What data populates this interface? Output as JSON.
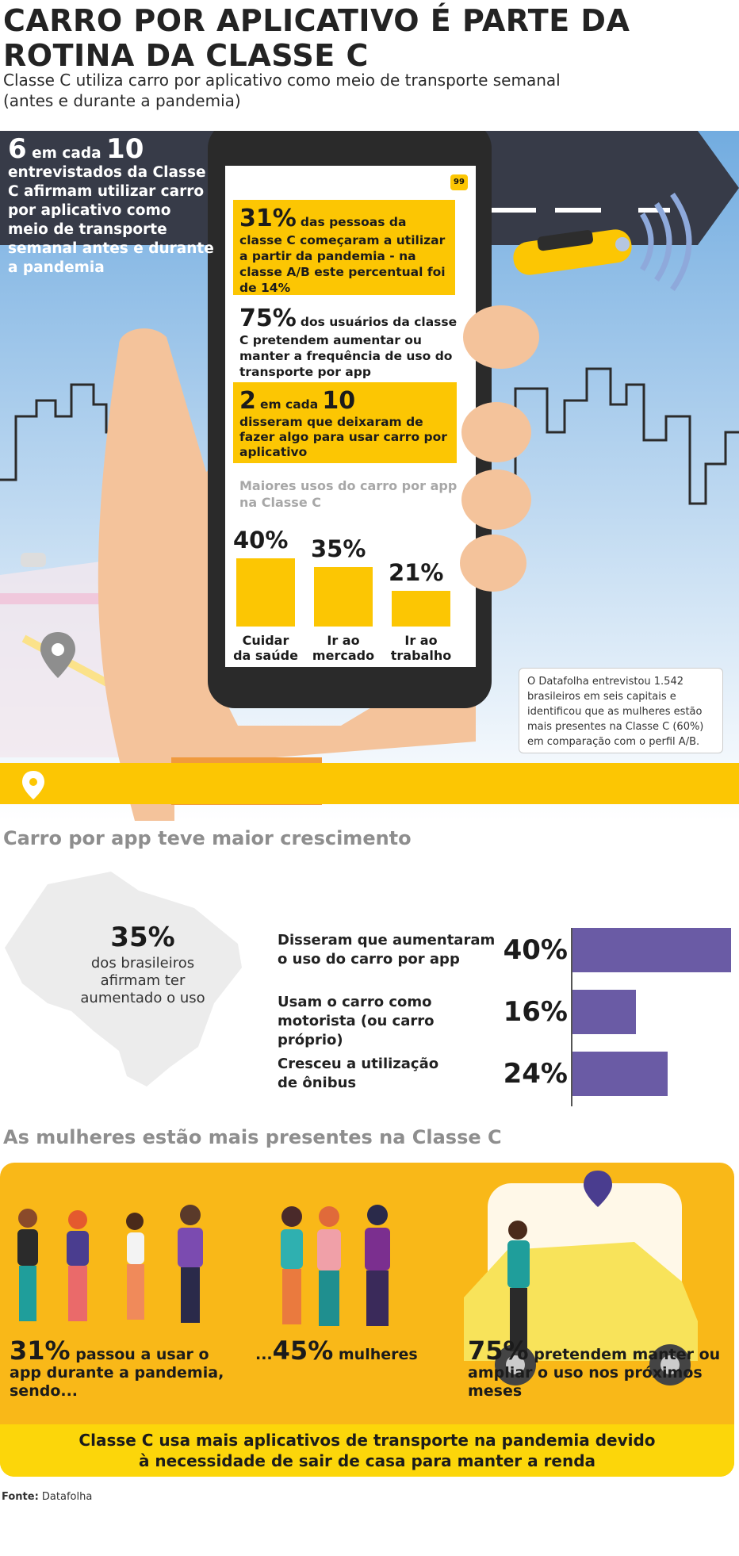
{
  "header": {
    "title_line1": "CARRO POR APLICATIVO É PARTE DA",
    "title_line2": "ROTINA DA CLASSE C",
    "subtitle_line1": "Classe C utiliza carro por aplicativo como meio de transporte semanal",
    "subtitle_line2": "(antes e durante a pandemia)"
  },
  "hero": {
    "six_num": "6",
    "six_mid": "em cada",
    "six_ten": "10",
    "six_text": "entrevistados da Classe C afirmam utilizar carro por aplicativo como meio de transporte semanal antes e durante a pandemia",
    "badge": "99",
    "stat1_big": "31%",
    "stat1_text": "das pessoas da classe C começaram a utilizar a partir da pandemia - na classe A/B este percentual foi de 14%",
    "stat2_big": "75%",
    "stat2_text": "dos usuários da classe C pretendem aumentar ou manter a frequência de uso do transporte por app",
    "stat3_num": "2",
    "stat3_mid": "em cada",
    "stat3_ten": "10",
    "stat3_text": "disseram que deixaram de fazer algo para usar carro por aplicativo",
    "note": "O Datafolha entrevistou 1.542 brasileiros em seis capitais e identificou que as mulheres estão mais presentes na Classe C (60%) em comparação com o perfil A/B."
  },
  "chart_data": [
    {
      "type": "bar",
      "title": "Maiores usos do carro por app na Classe C",
      "categories": [
        "Cuidar da saúde",
        "Ir ao mercado",
        "Ir ao trabalho"
      ],
      "values": [
        40,
        35,
        21
      ],
      "value_labels": [
        "40%",
        "35%",
        "21%"
      ],
      "cat_lines": [
        [
          "Cuidar",
          "da saúde"
        ],
        [
          "Ir ao",
          "mercado"
        ],
        [
          "Ir ao",
          "trabalho"
        ]
      ],
      "ylim": [
        0,
        40
      ],
      "color": "#fcc603"
    },
    {
      "type": "bar",
      "orientation": "horizontal",
      "title": "Carro por app teve maior crescimento",
      "categories": [
        "Disseram que aumentaram o uso do carro por app",
        "Usam o carro como motorista (ou carro próprio)",
        "Cresceu a utilização de ônibus"
      ],
      "cat_lines": [
        [
          "Disseram que aumentaram",
          "o uso do carro por app"
        ],
        [
          "Usam o carro como",
          "motorista (ou carro próprio)"
        ],
        [
          "Cresceu a utilização",
          "de ônibus"
        ]
      ],
      "values": [
        40,
        16,
        24
      ],
      "value_labels": [
        "40%",
        "16%",
        "24%"
      ],
      "xlim": [
        0,
        40
      ],
      "color": "#6a5ba5"
    }
  ],
  "growth": {
    "map_pct": "35%",
    "map_text": "dos brasileiros afirmam ter aumentado o uso"
  },
  "women": {
    "title": "As mulheres estão mais presentes na Classe C",
    "s1_big": "31%",
    "s1_text": "passou a usar o app durante a pandemia, sendo...",
    "s2_pre": "...",
    "s2_big": "45%",
    "s2_text": "mulheres",
    "s3_big": "75%",
    "s3_text": "pretendem manter ou ampliar o uso nos próximos meses",
    "bottom_line1": "Classe C usa mais aplicativos de transporte na pandemia devido",
    "bottom_line2": "à necessidade de sair de casa para manter a renda"
  },
  "footer": {
    "source_label": "Fonte:",
    "source": "Datafolha"
  },
  "colors": {
    "yellow": "#fcc603",
    "purple": "#6a5ba5",
    "dark_road": "#373b48",
    "sky": "#7fb3e0",
    "panel": "#f9b818"
  }
}
